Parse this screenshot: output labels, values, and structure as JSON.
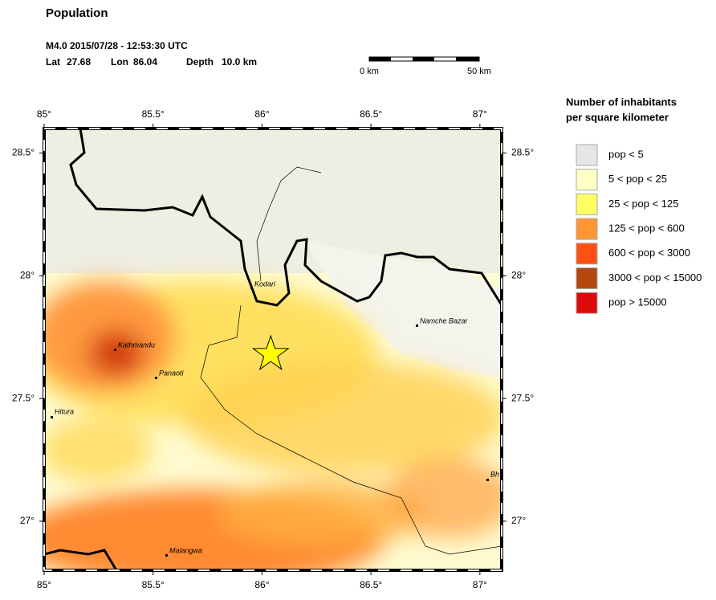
{
  "header": {
    "title": "Population",
    "event_line": "M4.0  2015/07/28 - 12:53:30 UTC",
    "lat_label": "Lat",
    "lon_label": "Lon",
    "depth_label": "Depth",
    "depth": "10.0 km"
  },
  "event": {
    "lat": 27.68,
    "lon": 86.04
  },
  "scale_bar": {
    "start": "0 km",
    "end": "50 km"
  },
  "map": {
    "xlim": [
      85,
      87.1
    ],
    "ylim": [
      26.8,
      28.6
    ],
    "xticks": [
      {
        "value": 85,
        "label": "85°"
      },
      {
        "value": 85.5,
        "label": "85.5°"
      },
      {
        "value": 86,
        "label": "86°"
      },
      {
        "value": 86.5,
        "label": "86.5°"
      },
      {
        "value": 87,
        "label": "87°"
      }
    ],
    "yticks": [
      {
        "value": 27,
        "label": "27°"
      },
      {
        "value": 27.5,
        "label": "27.5°"
      },
      {
        "value": 28,
        "label": "28°"
      },
      {
        "value": 28.5,
        "label": "28.5°"
      }
    ]
  },
  "cities": [
    "Kodari",
    "Kathmandu",
    "Panaoti",
    "Hitura",
    "Namche Bazar",
    "Bh",
    "Malangwa"
  ],
  "legend": {
    "title": [
      "Number of inhabitants",
      "per square kilometer"
    ],
    "items": [
      {
        "label": "pop < 5",
        "color": "#e6e6e6"
      },
      {
        "label": "5 < pop < 25",
        "color": "#ffffc8"
      },
      {
        "label": "25 < pop < 125",
        "color": "#ffff64"
      },
      {
        "label": "125 < pop < 600",
        "color": "#ff9632"
      },
      {
        "label": "600 < pop < 3000",
        "color": "#ff5014"
      },
      {
        "label": "3000 < pop < 15000",
        "color": "#b4460f"
      },
      {
        "label": "pop > 15000",
        "color": "#dc0a0a"
      }
    ]
  }
}
